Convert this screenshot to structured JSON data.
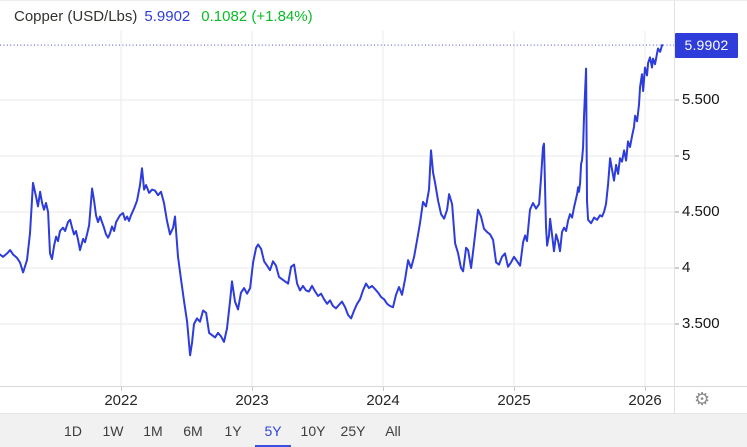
{
  "header": {
    "title": "Copper (USD/Lbs)",
    "price": "5.9902",
    "change": "0.1082 (+1.84%)"
  },
  "price_box": {
    "label": "5.9902"
  },
  "icons": {
    "settings": "⚙"
  },
  "colors": {
    "line_blue": "#2e3cd9",
    "dotted_blue": "#4450d8",
    "positive_green": "#0bbb26",
    "grid": "#eaeaea",
    "axis_divider": "#e2e2e2",
    "toolbar_bg": "#f1f1f2",
    "selected_blue": "#2f46d6",
    "underline_blue": "#3d4fe0",
    "tick_gray": "#9a9a9a"
  },
  "toolbar": {
    "buttons": [
      "1D",
      "1W",
      "1M",
      "6M",
      "1Y",
      "5Y",
      "10Y",
      "25Y",
      "All"
    ],
    "selected": "5Y"
  },
  "chart_data": {
    "type": "line",
    "title": "Copper (USD/Lbs)",
    "last_price": 5.9902,
    "change_abs": 0.1082,
    "change_pct": "+1.84%",
    "timeframe": "5Y",
    "grid": true,
    "xlim": [
      2021.076,
      2026.221
    ],
    "ylim": [
      2.946,
      6.384
    ],
    "x_ticks": [
      {
        "t": 2022,
        "label": "2022"
      },
      {
        "t": 2023,
        "label": "2023"
      },
      {
        "t": 2024,
        "label": "2024"
      },
      {
        "t": 2025,
        "label": "2025"
      },
      {
        "t": 2026,
        "label": "2026"
      }
    ],
    "y_ticks": [
      {
        "v": 5.5,
        "label": "5.500"
      },
      {
        "v": 5.0,
        "label": "5"
      },
      {
        "v": 4.5,
        "label": "4.500"
      },
      {
        "v": 4.0,
        "label": "4"
      },
      {
        "v": 3.5,
        "label": "3.500"
      }
    ],
    "series": [
      {
        "name": "Copper",
        "color": "#2e3cd9",
        "points": [
          [
            2021.076,
            4.12
          ],
          [
            2021.099,
            4.1
          ],
          [
            2021.13,
            4.13
          ],
          [
            2021.153,
            4.16
          ],
          [
            2021.176,
            4.12
          ],
          [
            2021.206,
            4.09
          ],
          [
            2021.229,
            4.05
          ],
          [
            2021.252,
            3.96
          ],
          [
            2021.282,
            4.07
          ],
          [
            2021.305,
            4.31
          ],
          [
            2021.328,
            4.76
          ],
          [
            2021.351,
            4.64
          ],
          [
            2021.366,
            4.55
          ],
          [
            2021.382,
            4.68
          ],
          [
            2021.397,
            4.58
          ],
          [
            2021.412,
            4.52
          ],
          [
            2021.427,
            4.58
          ],
          [
            2021.443,
            4.5
          ],
          [
            2021.458,
            4.13
          ],
          [
            2021.473,
            4.08
          ],
          [
            2021.489,
            4.2
          ],
          [
            2021.504,
            4.28
          ],
          [
            2021.519,
            4.24
          ],
          [
            2021.534,
            4.33
          ],
          [
            2021.557,
            4.36
          ],
          [
            2021.573,
            4.33
          ],
          [
            2021.595,
            4.41
          ],
          [
            2021.611,
            4.43
          ],
          [
            2021.626,
            4.36
          ],
          [
            2021.641,
            4.3
          ],
          [
            2021.656,
            4.33
          ],
          [
            2021.672,
            4.25
          ],
          [
            2021.687,
            4.16
          ],
          [
            2021.71,
            4.26
          ],
          [
            2021.725,
            4.23
          ],
          [
            2021.74,
            4.3
          ],
          [
            2021.756,
            4.38
          ],
          [
            2021.779,
            4.71
          ],
          [
            2021.794,
            4.6
          ],
          [
            2021.809,
            4.47
          ],
          [
            2021.824,
            4.41
          ],
          [
            2021.84,
            4.46
          ],
          [
            2021.855,
            4.41
          ],
          [
            2021.87,
            4.36
          ],
          [
            2021.885,
            4.3
          ],
          [
            2021.901,
            4.27
          ],
          [
            2021.916,
            4.31
          ],
          [
            2021.931,
            4.37
          ],
          [
            2021.947,
            4.33
          ],
          [
            2021.962,
            4.41
          ],
          [
            2021.977,
            4.44
          ],
          [
            2021.992,
            4.47
          ],
          [
            2022.015,
            4.49
          ],
          [
            2022.031,
            4.43
          ],
          [
            2022.046,
            4.46
          ],
          [
            2022.061,
            4.42
          ],
          [
            2022.076,
            4.47
          ],
          [
            2022.099,
            4.53
          ],
          [
            2022.122,
            4.6
          ],
          [
            2022.145,
            4.74
          ],
          [
            2022.16,
            4.89
          ],
          [
            2022.176,
            4.7
          ],
          [
            2022.191,
            4.74
          ],
          [
            2022.214,
            4.67
          ],
          [
            2022.237,
            4.7
          ],
          [
            2022.26,
            4.69
          ],
          [
            2022.282,
            4.65
          ],
          [
            2022.305,
            4.68
          ],
          [
            2022.328,
            4.58
          ],
          [
            2022.351,
            4.42
          ],
          [
            2022.374,
            4.3
          ],
          [
            2022.397,
            4.36
          ],
          [
            2022.412,
            4.46
          ],
          [
            2022.435,
            4.1
          ],
          [
            2022.458,
            3.9
          ],
          [
            2022.481,
            3.7
          ],
          [
            2022.504,
            3.52
          ],
          [
            2022.527,
            3.22
          ],
          [
            2022.542,
            3.33
          ],
          [
            2022.557,
            3.5
          ],
          [
            2022.58,
            3.55
          ],
          [
            2022.603,
            3.52
          ],
          [
            2022.626,
            3.62
          ],
          [
            2022.649,
            3.6
          ],
          [
            2022.672,
            3.42
          ],
          [
            2022.695,
            3.4
          ],
          [
            2022.718,
            3.38
          ],
          [
            2022.74,
            3.42
          ],
          [
            2022.763,
            3.39
          ],
          [
            2022.786,
            3.34
          ],
          [
            2022.809,
            3.46
          ],
          [
            2022.832,
            3.7
          ],
          [
            2022.847,
            3.88
          ],
          [
            2022.87,
            3.7
          ],
          [
            2022.893,
            3.63
          ],
          [
            2022.916,
            3.78
          ],
          [
            2022.939,
            3.82
          ],
          [
            2022.962,
            3.77
          ],
          [
            2022.985,
            3.82
          ],
          [
            2023.008,
            4.05
          ],
          [
            2023.031,
            4.18
          ],
          [
            2023.046,
            4.21
          ],
          [
            2023.069,
            4.17
          ],
          [
            2023.092,
            4.06
          ],
          [
            2023.115,
            4.02
          ],
          [
            2023.137,
            3.98
          ],
          [
            2023.16,
            4.06
          ],
          [
            2023.183,
            4.02
          ],
          [
            2023.206,
            3.92
          ],
          [
            2023.229,
            3.9
          ],
          [
            2023.252,
            3.88
          ],
          [
            2023.275,
            3.86
          ],
          [
            2023.298,
            4.01
          ],
          [
            2023.321,
            4.03
          ],
          [
            2023.344,
            3.86
          ],
          [
            2023.366,
            3.8
          ],
          [
            2023.389,
            3.84
          ],
          [
            2023.412,
            3.8
          ],
          [
            2023.435,
            3.79
          ],
          [
            2023.458,
            3.84
          ],
          [
            2023.481,
            3.79
          ],
          [
            2023.504,
            3.75
          ],
          [
            2023.527,
            3.77
          ],
          [
            2023.55,
            3.72
          ],
          [
            2023.573,
            3.68
          ],
          [
            2023.595,
            3.71
          ],
          [
            2023.618,
            3.66
          ],
          [
            2023.641,
            3.64
          ],
          [
            2023.664,
            3.67
          ],
          [
            2023.687,
            3.7
          ],
          [
            2023.71,
            3.65
          ],
          [
            2023.733,
            3.58
          ],
          [
            2023.756,
            3.55
          ],
          [
            2023.779,
            3.62
          ],
          [
            2023.802,
            3.68
          ],
          [
            2023.824,
            3.72
          ],
          [
            2023.847,
            3.8
          ],
          [
            2023.87,
            3.86
          ],
          [
            2023.893,
            3.82
          ],
          [
            2023.916,
            3.84
          ],
          [
            2023.939,
            3.81
          ],
          [
            2023.962,
            3.78
          ],
          [
            2023.985,
            3.74
          ],
          [
            2024.008,
            3.72
          ],
          [
            2024.031,
            3.68
          ],
          [
            2024.053,
            3.66
          ],
          [
            2024.076,
            3.65
          ],
          [
            2024.099,
            3.76
          ],
          [
            2024.122,
            3.83
          ],
          [
            2024.145,
            3.76
          ],
          [
            2024.168,
            3.9
          ],
          [
            2024.191,
            4.07
          ],
          [
            2024.214,
            4.0
          ],
          [
            2024.237,
            4.1
          ],
          [
            2024.26,
            4.25
          ],
          [
            2024.282,
            4.4
          ],
          [
            2024.305,
            4.59
          ],
          [
            2024.328,
            4.55
          ],
          [
            2024.351,
            4.7
          ],
          [
            2024.366,
            5.05
          ],
          [
            2024.382,
            4.85
          ],
          [
            2024.397,
            4.76
          ],
          [
            2024.42,
            4.6
          ],
          [
            2024.443,
            4.48
          ],
          [
            2024.466,
            4.44
          ],
          [
            2024.489,
            4.52
          ],
          [
            2024.504,
            4.66
          ],
          [
            2024.527,
            4.57
          ],
          [
            2024.55,
            4.22
          ],
          [
            2024.573,
            4.13
          ],
          [
            2024.595,
            4.0
          ],
          [
            2024.611,
            3.97
          ],
          [
            2024.634,
            4.18
          ],
          [
            2024.649,
            4.16
          ],
          [
            2024.672,
            4.0
          ],
          [
            2024.695,
            4.22
          ],
          [
            2024.725,
            4.52
          ],
          [
            2024.748,
            4.46
          ],
          [
            2024.771,
            4.35
          ],
          [
            2024.794,
            4.32
          ],
          [
            2024.817,
            4.3
          ],
          [
            2024.84,
            4.25
          ],
          [
            2024.863,
            4.05
          ],
          [
            2024.885,
            4.03
          ],
          [
            2024.908,
            4.1
          ],
          [
            2024.931,
            4.13
          ],
          [
            2024.954,
            4.01
          ],
          [
            2024.977,
            4.05
          ],
          [
            2025.0,
            4.1
          ],
          [
            2025.023,
            4.06
          ],
          [
            2025.046,
            4.02
          ],
          [
            2025.069,
            4.23
          ],
          [
            2025.084,
            4.29
          ],
          [
            2025.099,
            4.24
          ],
          [
            2025.122,
            4.52
          ],
          [
            2025.145,
            4.58
          ],
          [
            2025.168,
            4.53
          ],
          [
            2025.191,
            4.57
          ],
          [
            2025.206,
            4.8
          ],
          [
            2025.221,
            5.08
          ],
          [
            2025.229,
            5.11
          ],
          [
            2025.244,
            4.37
          ],
          [
            2025.252,
            4.2
          ],
          [
            2025.267,
            4.29
          ],
          [
            2025.275,
            4.44
          ],
          [
            2025.29,
            4.3
          ],
          [
            2025.305,
            4.15
          ],
          [
            2025.321,
            4.3
          ],
          [
            2025.336,
            4.24
          ],
          [
            2025.351,
            4.15
          ],
          [
            2025.366,
            4.32
          ],
          [
            2025.382,
            4.36
          ],
          [
            2025.397,
            4.33
          ],
          [
            2025.412,
            4.42
          ],
          [
            2025.427,
            4.48
          ],
          [
            2025.443,
            4.45
          ],
          [
            2025.458,
            4.54
          ],
          [
            2025.481,
            4.66
          ],
          [
            2025.489,
            4.72
          ],
          [
            2025.496,
            4.68
          ],
          [
            2025.504,
            4.76
          ],
          [
            2025.512,
            4.93
          ],
          [
            2025.519,
            4.96
          ],
          [
            2025.527,
            5.08
          ],
          [
            2025.534,
            5.35
          ],
          [
            2025.542,
            5.58
          ],
          [
            2025.55,
            5.78
          ],
          [
            2025.557,
            4.6
          ],
          [
            2025.565,
            4.43
          ],
          [
            2025.588,
            4.4
          ],
          [
            2025.611,
            4.45
          ],
          [
            2025.634,
            4.43
          ],
          [
            2025.656,
            4.47
          ],
          [
            2025.672,
            4.46
          ],
          [
            2025.687,
            4.5
          ],
          [
            2025.702,
            4.57
          ],
          [
            2025.718,
            4.75
          ],
          [
            2025.733,
            4.98
          ],
          [
            2025.748,
            4.88
          ],
          [
            2025.763,
            4.78
          ],
          [
            2025.779,
            4.92
          ],
          [
            2025.794,
            4.84
          ],
          [
            2025.809,
            4.98
          ],
          [
            2025.824,
            4.95
          ],
          [
            2025.84,
            5.05
          ],
          [
            2025.855,
            4.96
          ],
          [
            2025.87,
            5.13
          ],
          [
            2025.885,
            5.08
          ],
          [
            2025.901,
            5.18
          ],
          [
            2025.916,
            5.26
          ],
          [
            2025.924,
            5.36
          ],
          [
            2025.939,
            5.31
          ],
          [
            2025.954,
            5.46
          ],
          [
            2025.962,
            5.62
          ],
          [
            2025.977,
            5.73
          ],
          [
            2025.985,
            5.58
          ],
          [
            2026.0,
            5.79
          ],
          [
            2026.015,
            5.72
          ],
          [
            2026.023,
            5.83
          ],
          [
            2026.038,
            5.88
          ],
          [
            2026.053,
            5.79
          ],
          [
            2026.061,
            5.87
          ],
          [
            2026.076,
            5.82
          ],
          [
            2026.099,
            5.96
          ],
          [
            2026.115,
            5.93
          ],
          [
            2026.13,
            5.99
          ]
        ]
      }
    ]
  }
}
